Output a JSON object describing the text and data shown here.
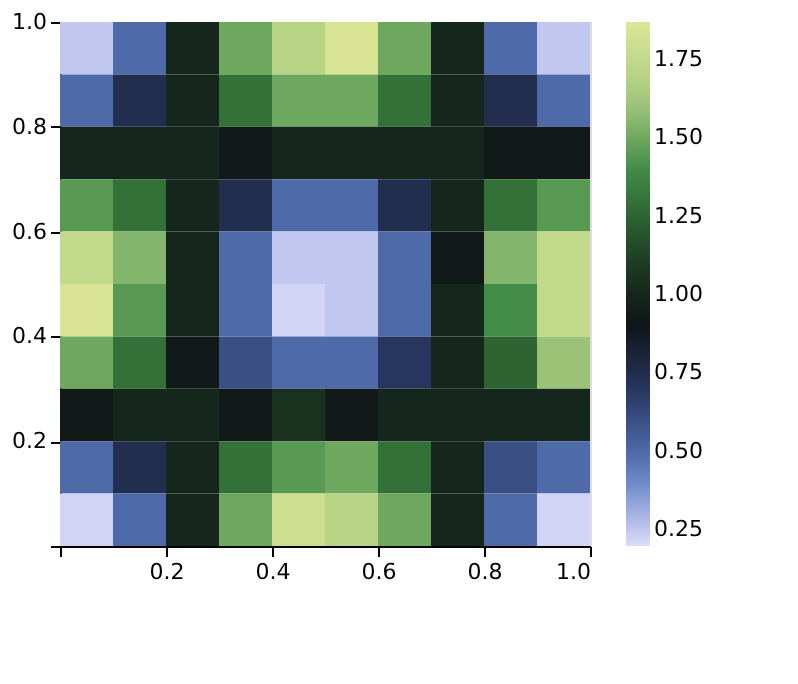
{
  "chart_data": {
    "type": "heatmap",
    "x": [
      0.05,
      0.15,
      0.25,
      0.35,
      0.45,
      0.55,
      0.65,
      0.75,
      0.85,
      0.95
    ],
    "y": [
      0.95,
      0.85,
      0.75,
      0.65,
      0.55,
      0.45,
      0.35,
      0.25,
      0.15,
      0.05
    ],
    "cells": [
      [
        0.25,
        0.5,
        1.0,
        1.5,
        1.7,
        1.85,
        1.5,
        1.0,
        0.5,
        0.25
      ],
      [
        0.5,
        0.75,
        1.0,
        1.3,
        1.5,
        1.5,
        1.3,
        1.0,
        0.75,
        0.5
      ],
      [
        1.0,
        1.0,
        1.0,
        0.95,
        1.0,
        1.0,
        1.0,
        1.0,
        0.95,
        0.95
      ],
      [
        1.45,
        1.3,
        1.0,
        0.75,
        0.5,
        0.5,
        0.75,
        1.0,
        1.3,
        1.45
      ],
      [
        1.75,
        1.55,
        1.0,
        0.5,
        0.25,
        0.25,
        0.5,
        0.95,
        1.55,
        1.75
      ],
      [
        1.85,
        1.45,
        1.0,
        0.5,
        0.22,
        0.25,
        0.5,
        1.0,
        1.4,
        1.75
      ],
      [
        1.5,
        1.3,
        0.95,
        0.6,
        0.5,
        0.5,
        0.7,
        1.0,
        1.25,
        1.6
      ],
      [
        0.95,
        1.0,
        1.0,
        0.95,
        1.05,
        0.95,
        1.0,
        1.0,
        1.0,
        1.0
      ],
      [
        0.5,
        0.75,
        1.0,
        1.3,
        1.45,
        1.5,
        1.3,
        1.0,
        0.6,
        0.5
      ],
      [
        0.22,
        0.5,
        1.0,
        1.5,
        1.8,
        1.7,
        1.5,
        1.0,
        0.5,
        0.22
      ]
    ],
    "colors": [
      "#dcdcfa",
      "#5a7ac0",
      "#2a3a66",
      "#0e1216",
      "#224a26",
      "#3f8a45",
      "#a8cc80",
      "#dce696"
    ],
    "clim": [
      0.2,
      1.87
    ],
    "cticks": [
      0.25,
      {
        "value": 0.5,
        "label": "0.50"
      },
      0.75,
      {
        "value": 1,
        "label": "1.00"
      },
      1.25,
      {
        "value": 1.5,
        "label": "1.50"
      },
      1.75
    ],
    "xlim": [
      0,
      1
    ],
    "ylim": [
      0,
      1
    ],
    "xticks": [
      {
        "value": 0,
        "label": null
      },
      0.2,
      0.4,
      0.6,
      0.8,
      {
        "value": 1,
        "label": "1.0"
      }
    ],
    "yticks": [
      {
        "value": 0,
        "label": null
      },
      0.2,
      0.4,
      0.6,
      0.8,
      {
        "value": 1,
        "label": "1.0"
      }
    ],
    "grid": false
  }
}
